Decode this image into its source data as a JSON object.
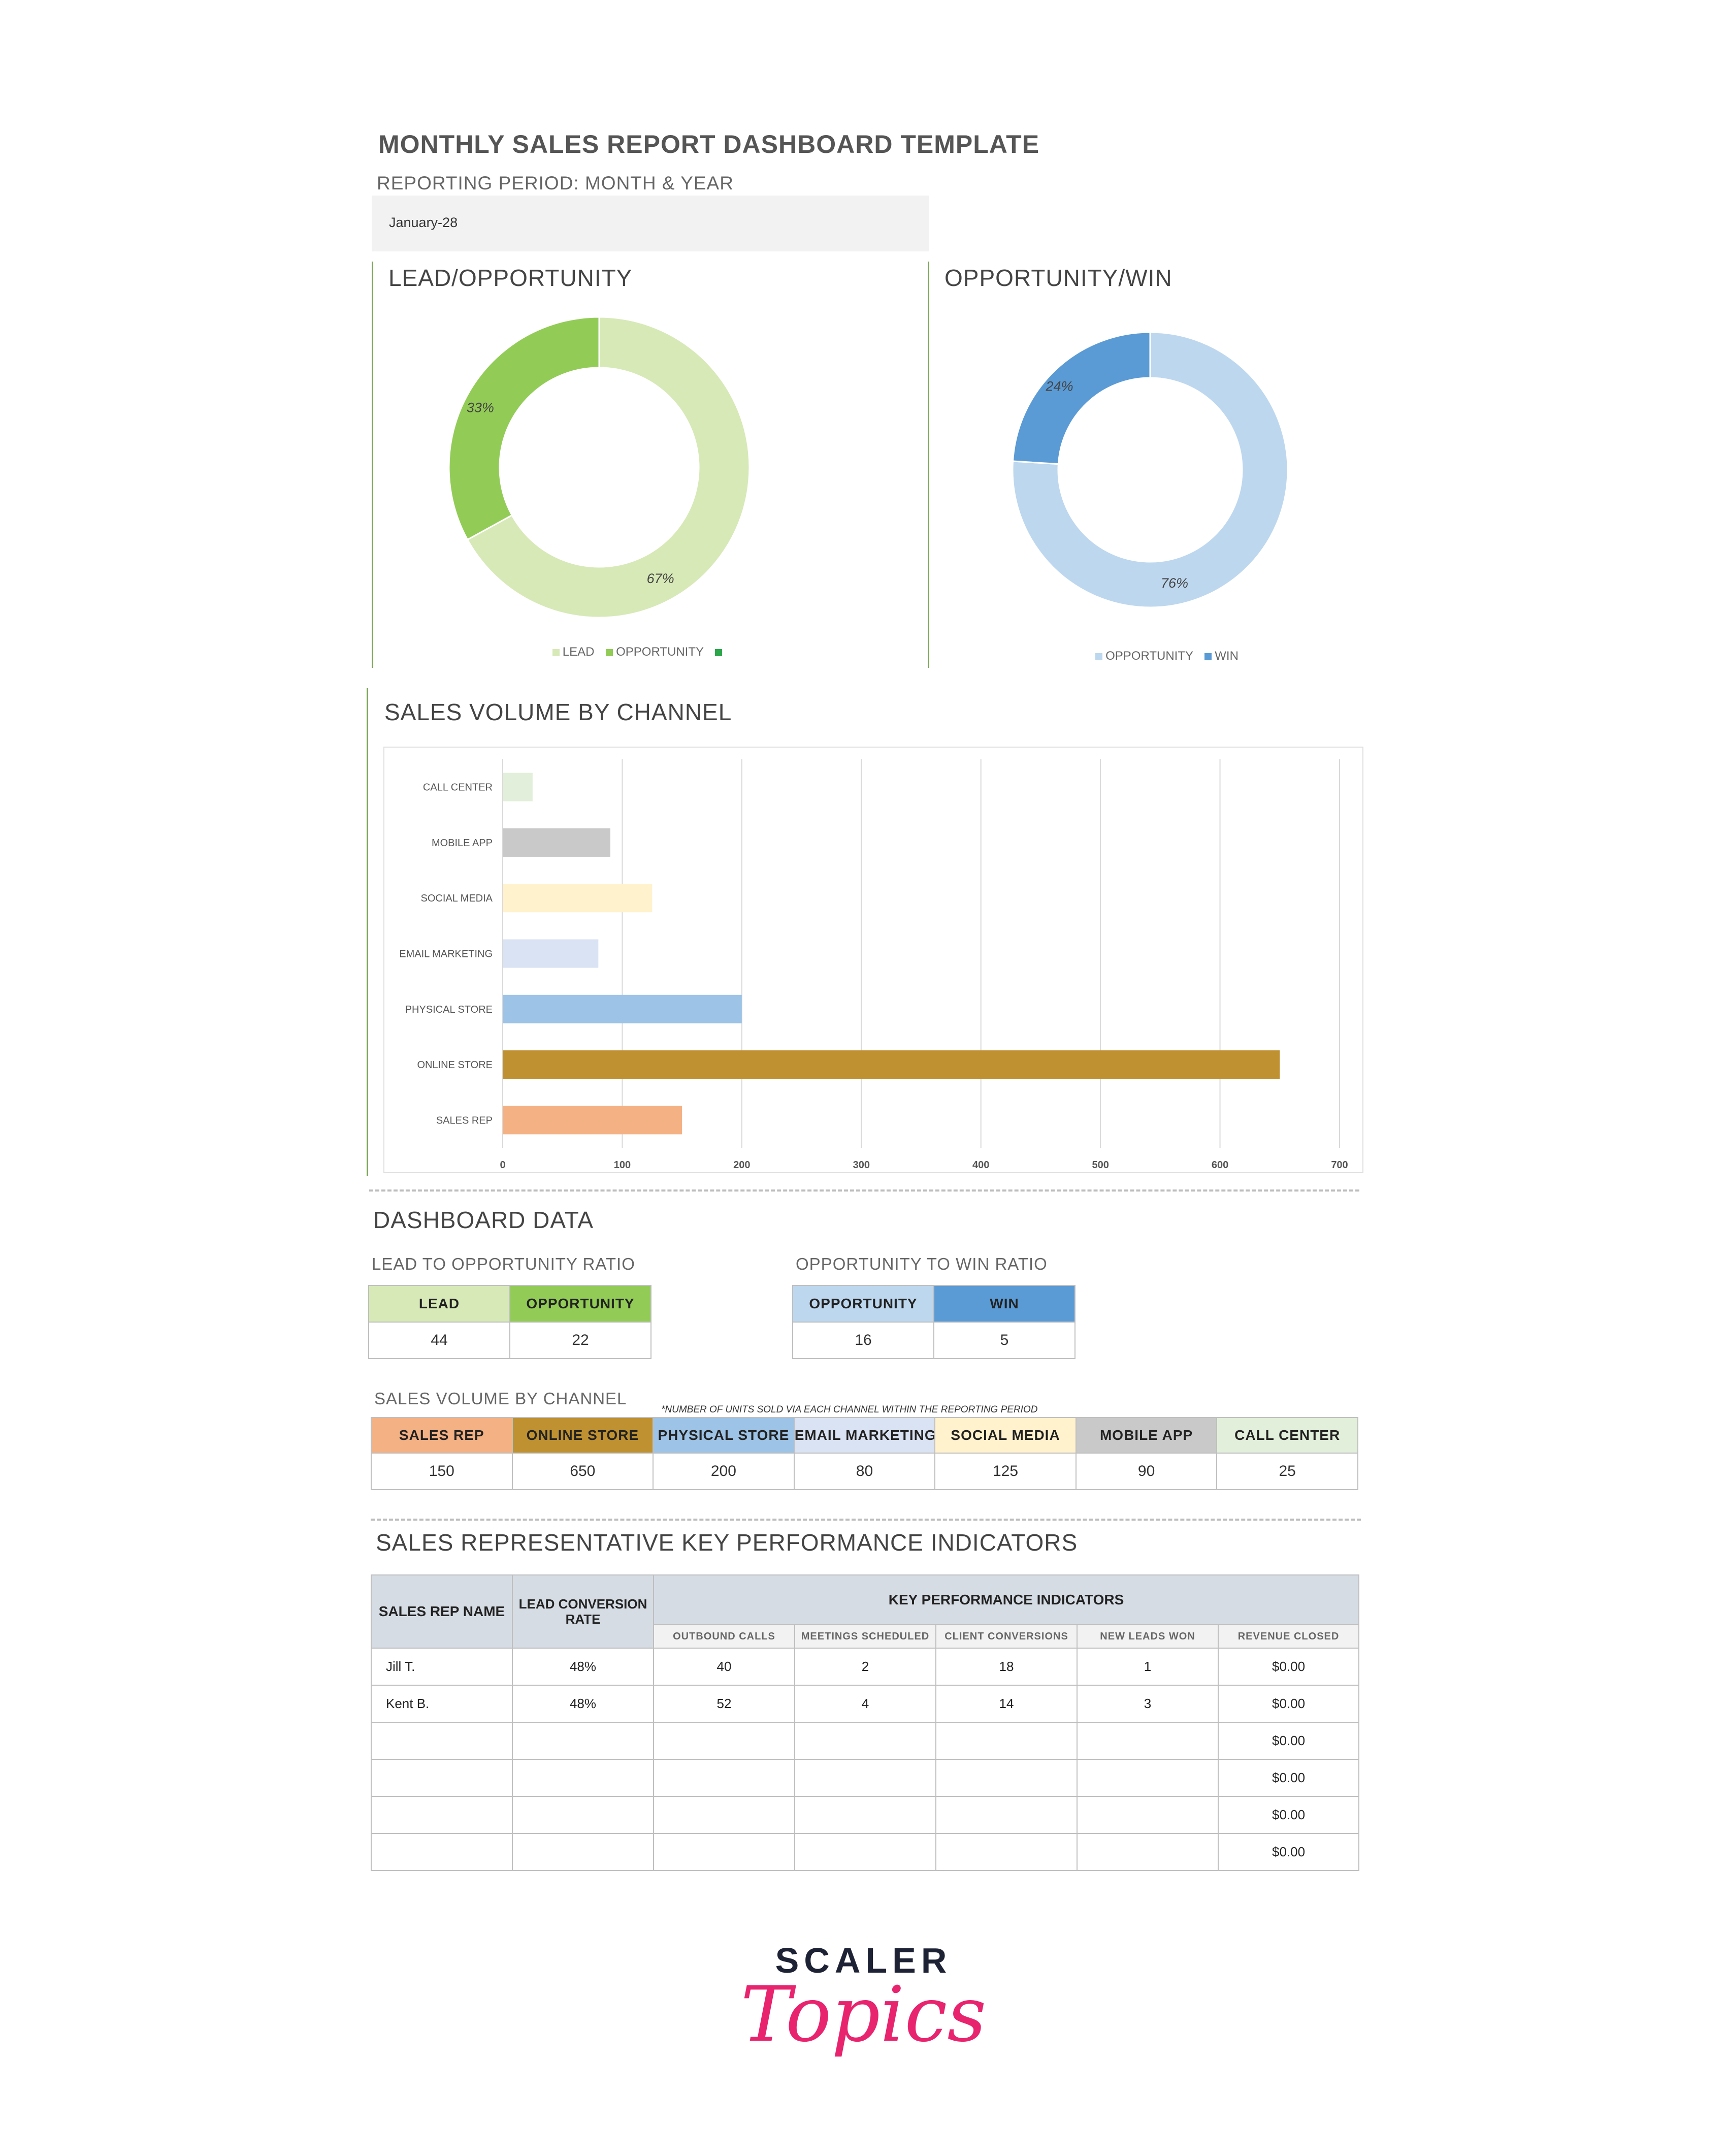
{
  "header": {
    "title": "MONTHLY SALES REPORT DASHBOARD TEMPLATE",
    "subtitle": "REPORTING PERIOD: MONTH & YEAR",
    "period_value": "January-28"
  },
  "lead_chart": {
    "title": "LEAD/OPPORTUNITY",
    "legend": [
      "LEAD",
      "OPPORTUNITY"
    ],
    "colors": [
      "#d7e9b7",
      "#92cc57",
      "#2ca64a"
    ]
  },
  "win_chart": {
    "title": "OPPORTUNITY/WIN",
    "legend": [
      "OPPORTUNITY",
      "WIN"
    ],
    "colors": [
      "#bdd7ee",
      "#5b9bd5"
    ]
  },
  "volume_chart": {
    "title": "SALES VOLUME BY CHANNEL",
    "colors": [
      "#f4b183",
      "#bf9130",
      "#9dc3e6",
      "#dae3f3",
      "#fff2cc",
      "#c9c9c9",
      "#e2efda"
    ]
  },
  "chart_data": [
    {
      "type": "pie",
      "categories": [
        "LEAD",
        "OPPORTUNITY"
      ],
      "values": [
        67,
        33
      ],
      "labels": [
        "67%",
        "33%"
      ],
      "title": "LEAD/OPPORTUNITY"
    },
    {
      "type": "pie",
      "categories": [
        "OPPORTUNITY",
        "WIN"
      ],
      "values": [
        76,
        24
      ],
      "labels": [
        "76%",
        "24%"
      ],
      "title": "OPPORTUNITY/WIN"
    },
    {
      "type": "bar",
      "orientation": "horizontal",
      "title": "SALES VOLUME BY CHANNEL",
      "categories": [
        "SALES REP",
        "ONLINE STORE",
        "PHYSICAL STORE",
        "EMAIL MARKETING",
        "SOCIAL MEDIA",
        "MOBILE APP",
        "CALL CENTER"
      ],
      "values": [
        150,
        650,
        200,
        80,
        125,
        90,
        25
      ],
      "xlim": [
        0,
        700
      ],
      "xticks": [
        "0",
        "100",
        "200",
        "300",
        "400",
        "500",
        "600",
        "700"
      ],
      "grid": true
    }
  ],
  "dashboard_data": {
    "title": "DASHBOARD DATA",
    "lead_ratio": {
      "title": "LEAD TO OPPORTUNITY RATIO",
      "headers": [
        "LEAD",
        "OPPORTUNITY"
      ],
      "values": [
        "44",
        "22"
      ],
      "colors": [
        "#d7e9b7",
        "#92cc57"
      ]
    },
    "win_ratio": {
      "title": "OPPORTUNITY TO WIN RATIO",
      "headers": [
        "OPPORTUNITY",
        "WIN"
      ],
      "values": [
        "16",
        "5"
      ],
      "colors": [
        "#bdd7ee",
        "#5b9bd5"
      ]
    },
    "channel": {
      "title": "SALES VOLUME BY CHANNEL",
      "note": "*NUMBER OF UNITS SOLD VIA EACH CHANNEL WITHIN THE REPORTING PERIOD",
      "headers": [
        "SALES REP",
        "ONLINE STORE",
        "PHYSICAL STORE",
        "EMAIL MARKETING",
        "SOCIAL MEDIA",
        "MOBILE APP",
        "CALL CENTER"
      ],
      "values": [
        "150",
        "650",
        "200",
        "80",
        "125",
        "90",
        "25"
      ],
      "colors": [
        "#f4b183",
        "#bf9130",
        "#9dc3e6",
        "#dae3f3",
        "#fff2cc",
        "#c9c9c9",
        "#e2efda"
      ]
    }
  },
  "kpi": {
    "title": "SALES REPRESENTATIVE KEY PERFORMANCE INDICATORS",
    "col_name": "SALES REP NAME",
    "col_rate": "LEAD CONVERSION RATE",
    "group_header": "KEY PERFORMANCE INDICATORS",
    "sub_headers": [
      "OUTBOUND CALLS",
      "MEETINGS SCHEDULED",
      "CLIENT CONVERSIONS",
      "NEW LEADS WON",
      "REVENUE CLOSED"
    ],
    "rows": [
      [
        "Jill T.",
        "48%",
        "40",
        "2",
        "18",
        "1",
        "$0.00"
      ],
      [
        "Kent B.",
        "48%",
        "52",
        "4",
        "14",
        "3",
        "$0.00"
      ],
      [
        "",
        "",
        "",
        "",
        "",
        "",
        "$0.00"
      ],
      [
        "",
        "",
        "",
        "",
        "",
        "",
        "$0.00"
      ],
      [
        "",
        "",
        "",
        "",
        "",
        "",
        "$0.00"
      ],
      [
        "",
        "",
        "",
        "",
        "",
        "",
        "$0.00"
      ]
    ]
  },
  "logo": {
    "top": "SCALER",
    "bottom": "Topics"
  }
}
